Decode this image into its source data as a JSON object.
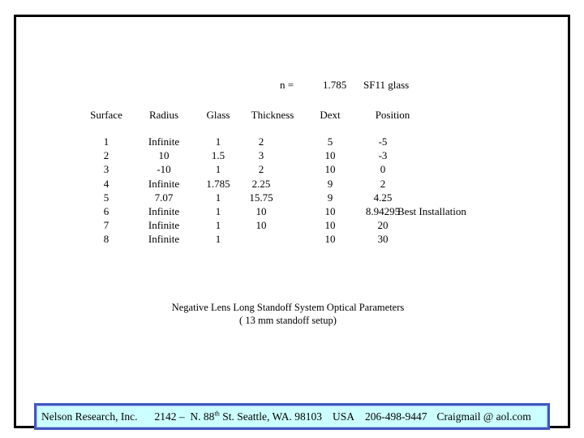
{
  "slide": {
    "refraction": {
      "label": "n =",
      "value": "1.785",
      "glass": "SF11 glass"
    },
    "table": {
      "headers": [
        "Surface",
        "Radius",
        "Glass",
        "Thickness",
        "Dext",
        "Position"
      ],
      "rows": [
        {
          "surface": "1",
          "radius": "Infinite",
          "glass": "1",
          "thickness": "2",
          "dext": "5",
          "position": "-5",
          "note": ""
        },
        {
          "surface": "2",
          "radius": "10",
          "glass": "1.5",
          "thickness": "3",
          "dext": "10",
          "position": "-3",
          "note": ""
        },
        {
          "surface": "3",
          "radius": "-10",
          "glass": "1",
          "thickness": "2",
          "dext": "10",
          "position": "0",
          "note": ""
        },
        {
          "surface": "4",
          "radius": "Infinite",
          "glass": "1.785",
          "thickness": "2.25",
          "dext": "9",
          "position": "2",
          "note": ""
        },
        {
          "surface": "5",
          "radius": "7.07",
          "glass": "1",
          "thickness": "15.75",
          "dext": "9",
          "position": "4.25",
          "note": ""
        },
        {
          "surface": "6",
          "radius": "Infinite",
          "glass": "1",
          "thickness": "10",
          "dext": "10",
          "position": "8.94295",
          "note": "Best Installation"
        },
        {
          "surface": "7",
          "radius": "Infinite",
          "glass": "1",
          "thickness": "10",
          "dext": "10",
          "position": "20",
          "note": ""
        },
        {
          "surface": "8",
          "radius": "Infinite",
          "glass": "1",
          "thickness": "",
          "dext": "10",
          "position": "30",
          "note": ""
        }
      ]
    },
    "caption": {
      "line1": "Negative Lens Long Standoff System Optical Parameters",
      "line2": "( 13 mm standoff setup)"
    }
  },
  "footer": {
    "company": "Nelson Research, Inc.",
    "address_pre": "2142 –  N. 88",
    "address_sup": "th",
    "address_post": " St. Seattle, WA. 98103",
    "country": "USA",
    "phone": "206-498-9447",
    "email": "Craigmail @ aol.com"
  },
  "colors": {
    "slide_border": "#000000",
    "footer_background": "#ccffff",
    "footer_border": "#3e58c0",
    "text": "#000000"
  }
}
